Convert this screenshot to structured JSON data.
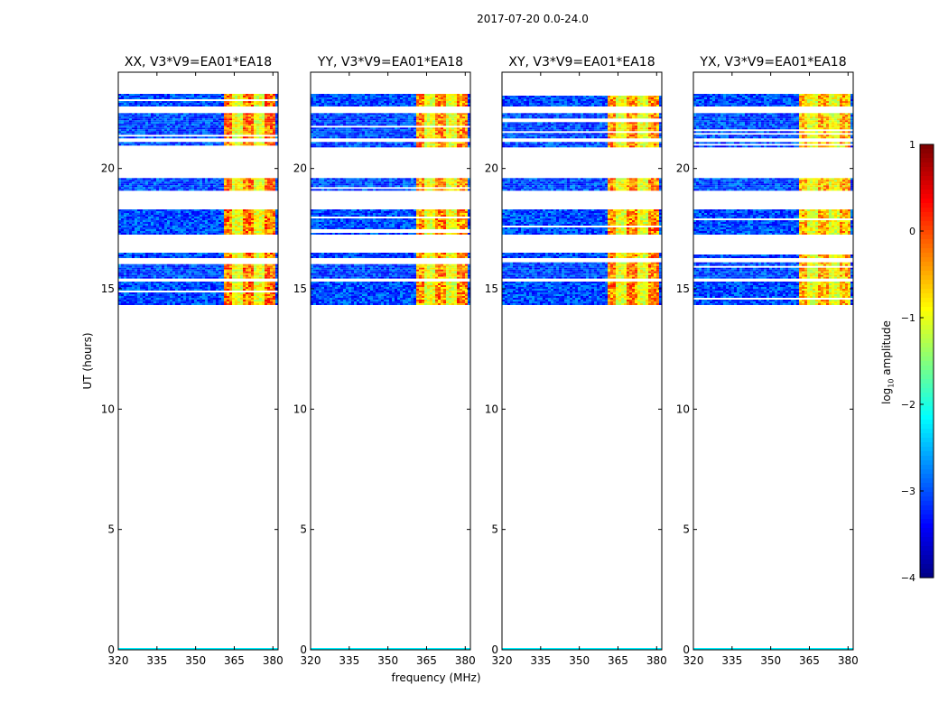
{
  "figure": {
    "suptitle": "2017-07-20 0.0-24.0"
  },
  "colorbar": {
    "label_prefix": "log",
    "label_subscript": "10",
    "label_suffix": " amplitude",
    "ticks": [
      1,
      0,
      -1,
      -2,
      -3,
      -4
    ],
    "tick_labels": [
      "1",
      "0",
      "−1",
      "−2",
      "−3",
      "−4"
    ],
    "range": [
      -4,
      1
    ],
    "colormap": "jet"
  },
  "chart_data": {
    "type": "heatmap",
    "xlabel": "frequency (MHz)",
    "ylabel": "UT (hours)",
    "xlim": [
      320,
      382
    ],
    "ylim": [
      0,
      24
    ],
    "xticks": [
      320,
      335,
      350,
      365,
      380
    ],
    "yticks": [
      0,
      5,
      10,
      15,
      20
    ],
    "panels": [
      {
        "title": "XX, V3*V9=EA01*EA18",
        "pol": "XX",
        "hot_level": 0.4
      },
      {
        "title": "YY, V3*V9=EA01*EA18",
        "pol": "YY",
        "hot_level": 0.3
      },
      {
        "title": "XY, V3*V9=EA01*EA18",
        "pol": "XY",
        "hot_level": 0.3
      },
      {
        "title": "YX, V3*V9=EA01*EA18",
        "pol": "YX",
        "hot_level": 0.1
      }
    ],
    "data_bands_ut": [
      [
        14.4,
        15.3
      ],
      [
        15.45,
        16.1
      ],
      [
        16.3,
        16.5
      ],
      [
        17.3,
        18.3
      ],
      [
        19.1,
        19.6
      ],
      [
        20.9,
        21.1
      ],
      [
        21.3,
        22.3
      ],
      [
        22.6,
        23.1
      ]
    ],
    "strong_rfi_freq_mhz": [
      [
        360.5,
        381
      ]
    ],
    "background_log_amplitude": -3.0,
    "rfi_log_amplitude": -1.0
  }
}
